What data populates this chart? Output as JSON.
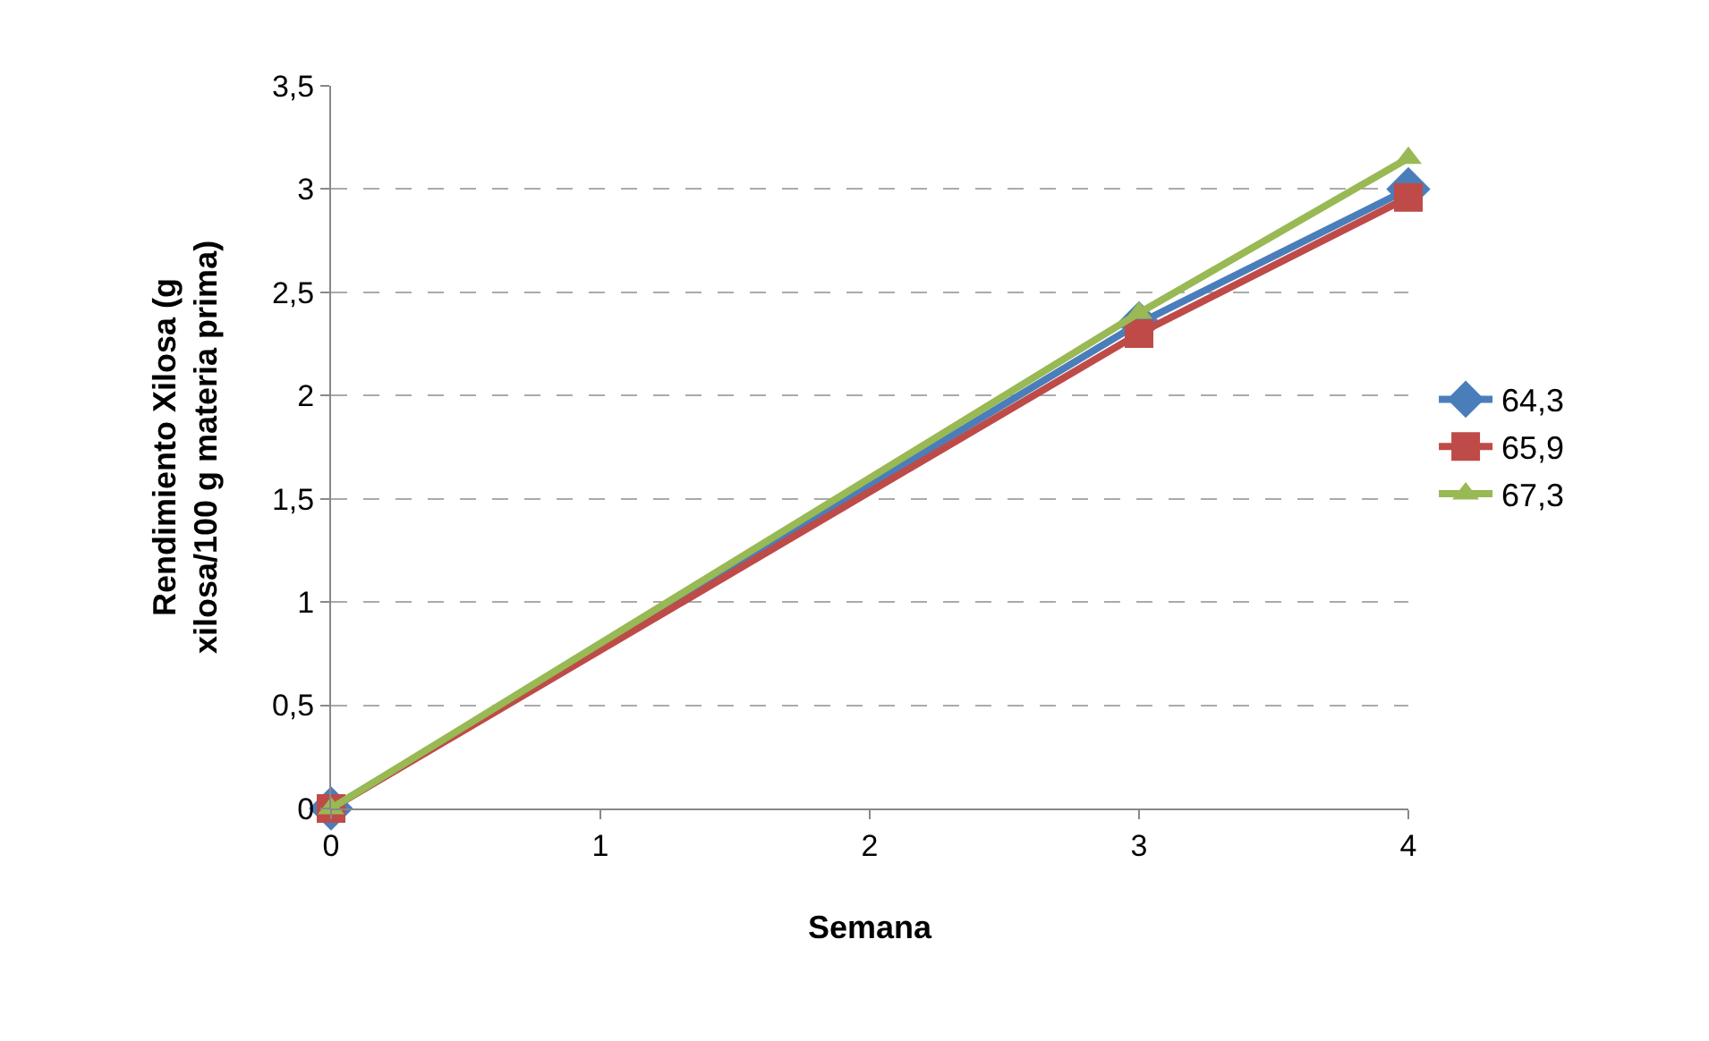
{
  "chart_data": {
    "type": "line",
    "xlabel": "Semana",
    "ylabel": "Rendimiento Xilosa (g xilosa/100 g materia prima)",
    "x": [
      0,
      3,
      4
    ],
    "series": [
      {
        "name": "64,3",
        "color": "#4a7ebb",
        "values": [
          0,
          2.35,
          3.0
        ],
        "marker": "diamond"
      },
      {
        "name": "65,9",
        "color": "#be4b48",
        "values": [
          0,
          2.3,
          2.96
        ],
        "marker": "square"
      },
      {
        "name": "67,3",
        "color": "#98b954",
        "values": [
          0,
          2.4,
          3.15
        ],
        "marker": "triangle"
      }
    ],
    "xlim": [
      0,
      4
    ],
    "xticks": [
      0,
      1,
      2,
      3,
      4
    ],
    "ylim": [
      0,
      3.5
    ],
    "yticks": [
      0,
      {
        "value": 0.5,
        "label": "0,5"
      },
      1,
      {
        "value": 1.5,
        "label": "1,5"
      },
      2,
      {
        "value": 2.5,
        "label": "2,5"
      },
      3,
      {
        "value": 3.5,
        "label": "3,5"
      }
    ],
    "grid": "y",
    "legend": "right",
    "line_style": "solid"
  }
}
